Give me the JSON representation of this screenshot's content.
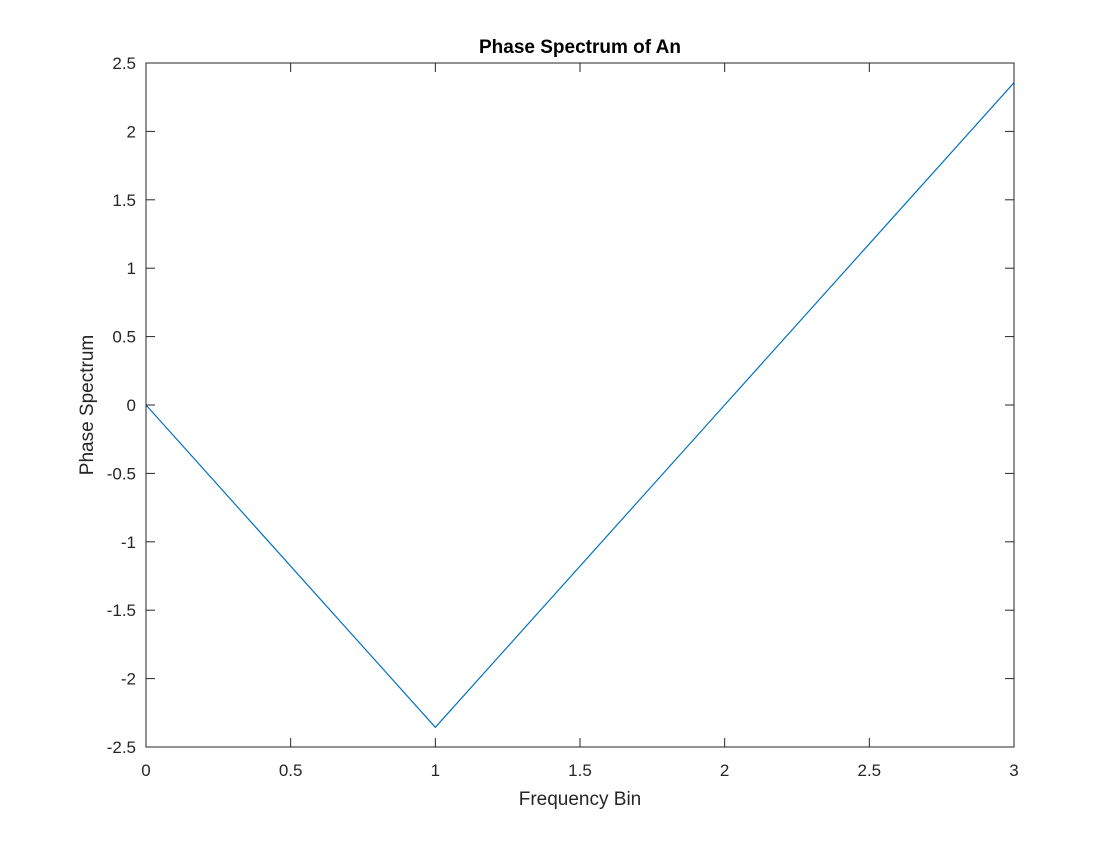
{
  "chart_data": {
    "type": "line",
    "title": "Phase Spectrum of An",
    "xlabel": "Frequency Bin",
    "ylabel": "Phase Spectrum",
    "xlim": [
      0,
      3
    ],
    "ylim": [
      -2.5,
      2.5
    ],
    "xticks": [
      0,
      0.5,
      1,
      1.5,
      2,
      2.5,
      3
    ],
    "xtick_labels": [
      "0",
      "0.5",
      "1",
      "1.5",
      "2",
      "2.5",
      "3"
    ],
    "yticks": [
      -2.5,
      -2,
      -1.5,
      -1,
      -0.5,
      0,
      0.5,
      1,
      1.5,
      2,
      2.5
    ],
    "ytick_labels": [
      "-2.5",
      "-2",
      "-1.5",
      "-1",
      "-0.5",
      "0",
      "0.5",
      "1",
      "1.5",
      "2",
      "2.5"
    ],
    "grid": false,
    "series": [
      {
        "x": [
          0,
          1,
          2,
          3
        ],
        "y": [
          0,
          -2.356,
          0,
          2.356
        ]
      }
    ],
    "line_color": "#0072BD"
  }
}
